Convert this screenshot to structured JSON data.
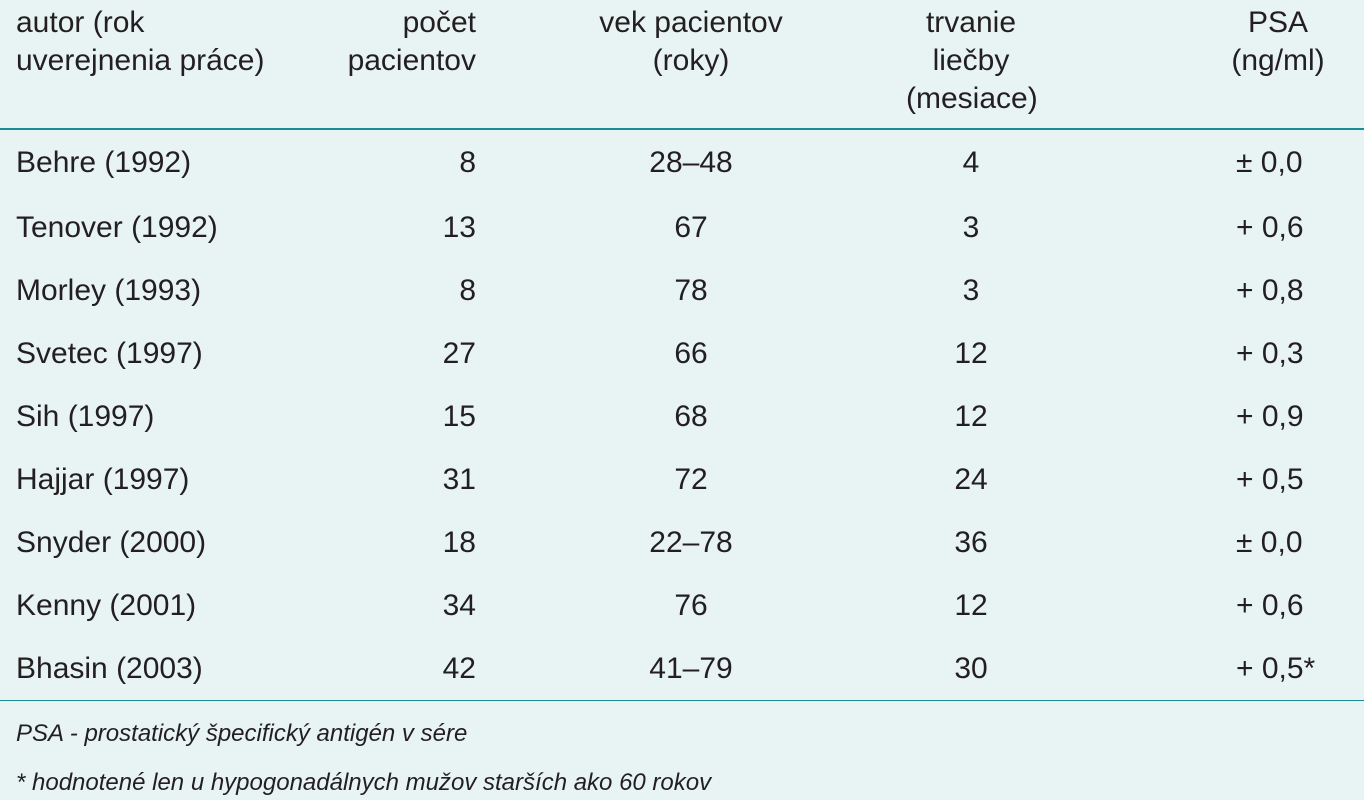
{
  "table": {
    "headers": {
      "author": [
        "autor (rok",
        "uverejnenia práce)"
      ],
      "count": [
        "počet",
        "pacientov"
      ],
      "age": [
        "vek pacientov",
        "(roky)"
      ],
      "duration": [
        "trvanie liečby",
        "(mesiace)"
      ],
      "psa": [
        "PSA",
        "(ng/ml)"
      ]
    },
    "rows": [
      {
        "author": "Behre (1992)",
        "count": "8",
        "age": "28–48",
        "duration": "4",
        "psa": "± 0,0"
      },
      {
        "author": "Tenover (1992)",
        "count": "13",
        "age": "67",
        "duration": "3",
        "psa": "+ 0,6"
      },
      {
        "author": "Morley (1993)",
        "count": "8",
        "age": "78",
        "duration": "3",
        "psa": "+ 0,8"
      },
      {
        "author": "Svetec (1997)",
        "count": "27",
        "age": "66",
        "duration": "12",
        "psa": "+ 0,3"
      },
      {
        "author": "Sih (1997)",
        "count": "15",
        "age": "68",
        "duration": "12",
        "psa": "+ 0,9"
      },
      {
        "author": "Hajjar (1997)",
        "count": "31",
        "age": "72",
        "duration": "24",
        "psa": "+ 0,5"
      },
      {
        "author": "Snyder (2000)",
        "count": "18",
        "age": "22–78",
        "duration": "36",
        "psa": "± 0,0"
      },
      {
        "author": "Kenny (2001)",
        "count": "34",
        "age": "76",
        "duration": "12",
        "psa": "+ 0,6"
      },
      {
        "author": "Bhasin (2003)",
        "count": "42",
        "age": "41–79",
        "duration": "30",
        "psa": "+ 0,5*"
      }
    ]
  },
  "footnotes": {
    "psa_definition": "PSA - prostatický špecifický antigén v sére",
    "asterisk_note": "* hodnotené len u hypogonadálnych mužov starších ako 60 rokov"
  },
  "colors": {
    "background": "#e8f3f4",
    "rule": "#1b8d96",
    "text": "#231f20"
  }
}
